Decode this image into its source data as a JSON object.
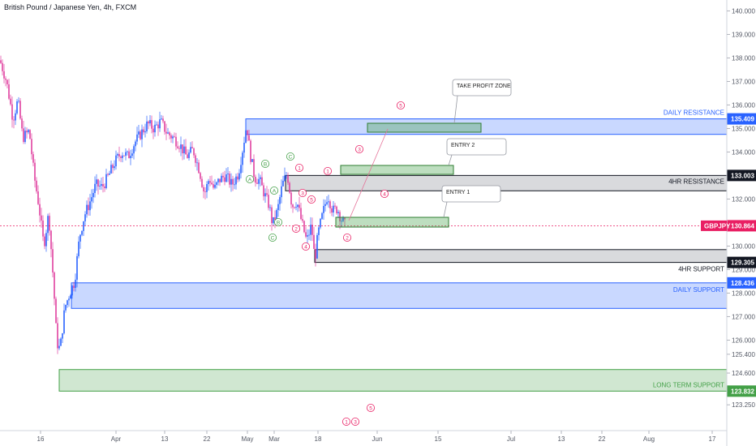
{
  "chart_data": {
    "type": "candlestick",
    "title": "British Pound / Japanese Yen, 4h, FXCM",
    "y_ticks": [
      "140.000",
      "139.000",
      "138.000",
      "137.000",
      "136.000",
      "135.000",
      "134.000",
      "133.000",
      "132.000",
      "131.000",
      "130.000",
      "129.000",
      "128.000",
      "127.000",
      "126.000",
      "125.400",
      "124.600",
      "123.250"
    ],
    "ylim": [
      122.7,
      140.2
    ],
    "x_ticks": [
      "16",
      "Apr",
      "13",
      "22",
      "May",
      "Mar",
      "18",
      "Jun",
      "15",
      "Jul",
      "13",
      "22",
      "Aug",
      "17"
    ],
    "price_markers": {
      "daily_resistance": {
        "value": 135.409,
        "label": "135.409",
        "color": "#2962ff"
      },
      "resistance_4hr": {
        "value": 133.003,
        "label": "133.003",
        "color": "#131722"
      },
      "current": {
        "value": 130.864,
        "label": "130.864",
        "symbol": "GBPJPY",
        "color": "#e91e63"
      },
      "support_4hr": {
        "value": 129.305,
        "label": "129.305",
        "color": "#131722"
      },
      "daily_support": {
        "value": 128.436,
        "label": "128.436",
        "color": "#2962ff"
      },
      "long_term_support": {
        "value": 123.832,
        "label": "123.832",
        "color": "#43a047"
      }
    },
    "zones": [
      {
        "name": "DAILY RESISTANCE",
        "top": 135.409,
        "bottom": 134.75,
        "color": "#2962ff"
      },
      {
        "name": "4HR RESISTANCE",
        "top": 133.003,
        "bottom": 132.35,
        "color": "#131722"
      },
      {
        "name": "4HR SUPPORT",
        "top": 129.85,
        "bottom": 129.305,
        "color": "#131722"
      },
      {
        "name": "DAILY SUPPORT",
        "top": 128.436,
        "bottom": 127.35,
        "color": "#2962ff"
      },
      {
        "name": "LONG TERM SUPPORT",
        "top": 124.75,
        "bottom": 123.832,
        "color": "#43a047"
      }
    ],
    "annotations": [
      {
        "text": "TAKE PROFIT ZONE"
      },
      {
        "text": "ENTRY 2"
      },
      {
        "text": "ENTRY 1"
      }
    ],
    "wave_labels": [
      "1",
      "2",
      "3",
      "4",
      "5",
      "A",
      "B",
      "C"
    ],
    "colors": {
      "up": "#2962ff",
      "down": "#e040a0",
      "current_line": "#e91e63"
    }
  }
}
